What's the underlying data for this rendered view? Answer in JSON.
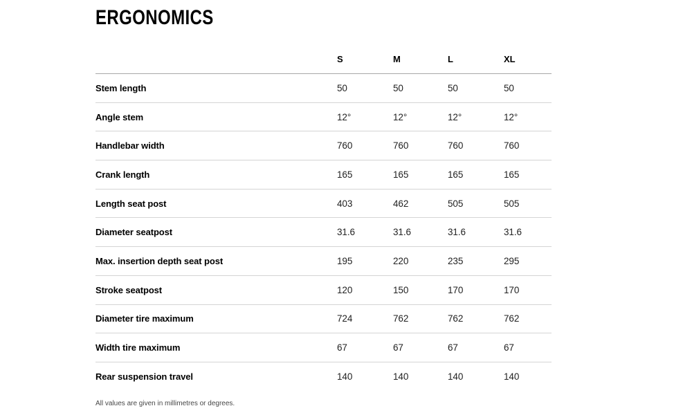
{
  "page": {
    "title": "ERGONOMICS",
    "footnote": "All values are given in millimetres or degrees."
  },
  "table": {
    "size_headers": [
      "S",
      "M",
      "L",
      "XL"
    ],
    "rows": [
      {
        "label": "Stem length",
        "values": [
          "50",
          "50",
          "50",
          "50"
        ]
      },
      {
        "label": "Angle stem",
        "values": [
          "12°",
          "12°",
          "12°",
          "12°"
        ]
      },
      {
        "label": "Handlebar width",
        "values": [
          "760",
          "760",
          "760",
          "760"
        ]
      },
      {
        "label": "Crank length",
        "values": [
          "165",
          "165",
          "165",
          "165"
        ]
      },
      {
        "label": "Length seat post",
        "values": [
          "403",
          "462",
          "505",
          "505"
        ]
      },
      {
        "label": "Diameter seatpost",
        "values": [
          "31.6",
          "31.6",
          "31.6",
          "31.6"
        ]
      },
      {
        "label": "Max. insertion depth seat post",
        "values": [
          "195",
          "220",
          "235",
          "295"
        ]
      },
      {
        "label": "Stroke seatpost",
        "values": [
          "120",
          "150",
          "170",
          "170"
        ]
      },
      {
        "label": "Diameter tire maximum",
        "values": [
          "724",
          "762",
          "762",
          "762"
        ]
      },
      {
        "label": "Width tire maximum",
        "values": [
          "67",
          "67",
          "67",
          "67"
        ]
      },
      {
        "label": "Rear suspension travel",
        "values": [
          "140",
          "140",
          "140",
          "140"
        ]
      }
    ]
  },
  "colors": {
    "header_divider": "#a8a8a8",
    "row_divider": "#d4d4d4",
    "text": "#000000",
    "value_text": "#222222",
    "footnote_text": "#474747"
  }
}
